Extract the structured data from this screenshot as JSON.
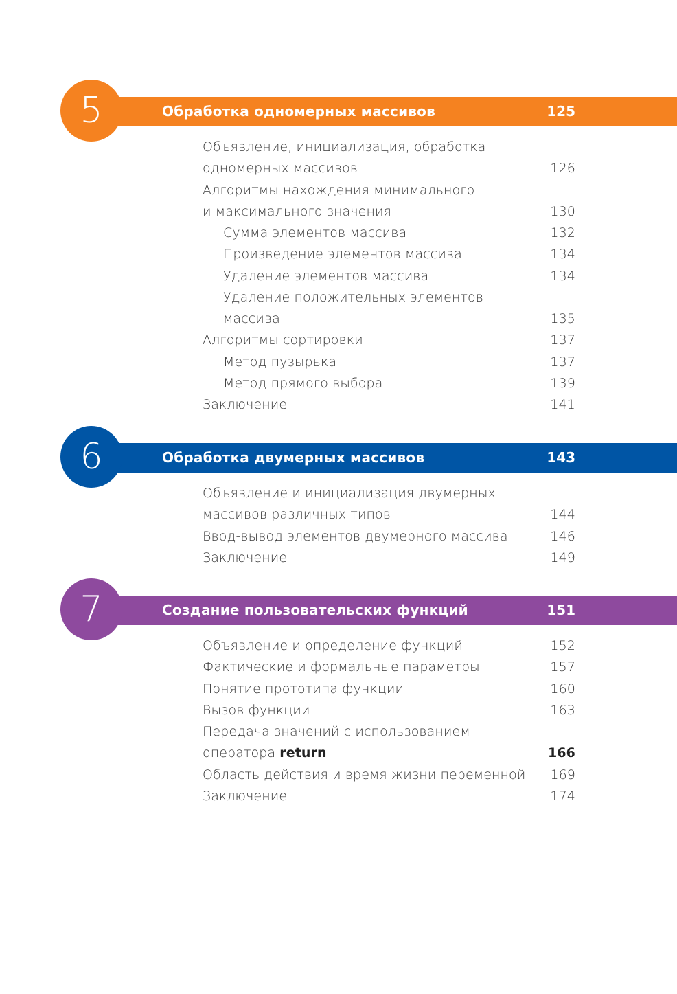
{
  "colors": {
    "chapter5": "#f58220",
    "chapter6": "#0055a5",
    "chapter7": "#8e4a9e"
  },
  "chapters": [
    {
      "number": "5",
      "title": "Обработка одномерных массивов",
      "page": "125",
      "entries": [
        {
          "lines": [
            "Объявление, инициализация, обработка",
            "одномерных массивов"
          ],
          "page": "126"
        },
        {
          "lines": [
            "Алгоритмы нахождения минимального",
            "и максимального значения"
          ],
          "page": "130"
        },
        {
          "lines": [
            "Сумма элементов массива"
          ],
          "page": "132",
          "sub": true
        },
        {
          "lines": [
            "Произведение элементов массива"
          ],
          "page": "134",
          "sub": true
        },
        {
          "lines": [
            "Удаление элементов массива"
          ],
          "page": "134",
          "sub": true
        },
        {
          "lines": [
            "Удаление положительных элементов",
            "массива"
          ],
          "page": "135",
          "sub": true
        },
        {
          "lines": [
            "Алгоритмы сортировки"
          ],
          "page": "137"
        },
        {
          "lines": [
            "Метод пузырька"
          ],
          "page": "137",
          "sub": true
        },
        {
          "lines": [
            "Метод прямого выбора"
          ],
          "page": "139",
          "sub": true
        },
        {
          "lines": [
            "Заключение"
          ],
          "page": "141"
        }
      ]
    },
    {
      "number": "6",
      "title": "Обработка двумерных массивов",
      "page": "143",
      "entries": [
        {
          "lines": [
            "Объявление и инициализация двумерных",
            "массивов различных типов"
          ],
          "page": "144"
        },
        {
          "lines": [
            "Ввод-вывод элементов двумерного массива"
          ],
          "page": "146"
        },
        {
          "lines": [
            "Заключение"
          ],
          "page": "149"
        }
      ]
    },
    {
      "number": "7",
      "title": "Создание пользовательских функций",
      "page": "151",
      "entries": [
        {
          "lines": [
            "Объявление и определение функций"
          ],
          "page": "152"
        },
        {
          "lines": [
            "Фактические и формальные параметры"
          ],
          "page": "157"
        },
        {
          "lines": [
            "Понятие прототипа функции"
          ],
          "page": "160"
        },
        {
          "lines": [
            "Вызов функции"
          ],
          "page": "163"
        },
        {
          "lines": [
            "Передача значений с использованием",
            "оператора "
          ],
          "bold": "return",
          "page": "166",
          "page_bold": true
        },
        {
          "lines": [
            "Область действия и время жизни переменной"
          ],
          "page": "169"
        },
        {
          "lines": [
            "Заключение"
          ],
          "page": "174"
        }
      ]
    }
  ]
}
